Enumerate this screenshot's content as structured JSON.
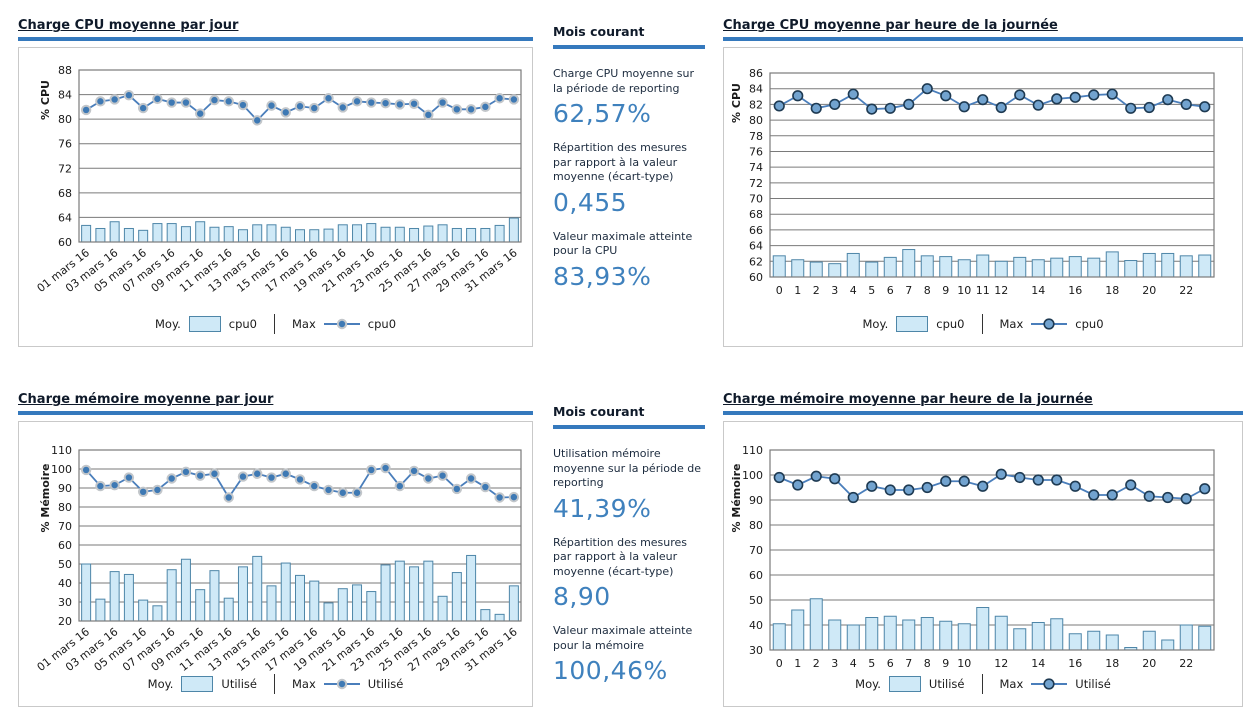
{
  "colors": {
    "accent_bar": "#3579bd",
    "big_number": "#3f81bd",
    "bar_fill": "#cfe9f7",
    "bar_stroke": "#4e86a8",
    "line": "#4a7ebb",
    "marker_fill_daily": "#3e79b4",
    "marker_stroke_daily": "#c2c6ca",
    "marker_fill_hourly": "#72a3cf",
    "marker_stroke_hourly": "#1e3a52",
    "grid": "#7a7a7a",
    "panel_border": "#c9c9c9",
    "title_text": "#0f1a2a"
  },
  "panels": {
    "cpu_daily": {
      "title": "Charge CPU  moyenne par jour"
    },
    "cpu_hourly": {
      "title": "Charge CPU moyenne par heure de la journée"
    },
    "mem_daily": {
      "title": "Charge mémoire moyenne par jour"
    },
    "mem_hourly": {
      "title": "Charge mémoire moyenne par heure de la journée"
    },
    "cpu_stats": {
      "title": "Mois courant",
      "items": [
        {
          "label": "Charge CPU moyenne sur la période de reporting",
          "value": "62,57%"
        },
        {
          "label": "Répartition des mesures par rapport à la valeur moyenne (écart-type)",
          "value": "0,455"
        },
        {
          "label": "Valeur maximale atteinte pour la CPU",
          "value": "83,93%"
        }
      ]
    },
    "mem_stats": {
      "title": "Mois courant",
      "items": [
        {
          "label": "Utilisation mémoire moyenne sur la période de reporting",
          "value": "41,39%"
        },
        {
          "label": "Répartition des mesures par rapport à la valeur moyenne (écart-type)",
          "value": "8,90"
        },
        {
          "label": "Valeur maximale atteinte pour la mémoire",
          "value": "100,46%"
        }
      ]
    }
  },
  "chart_data": [
    {
      "id": "cpu_daily",
      "type": "bar",
      "subtype": "combo-bar-line",
      "title": "Charge CPU  moyenne par jour",
      "xlabel": "",
      "ylabel": "% CPU",
      "ylim": [
        60,
        88
      ],
      "ystep": 4,
      "grid": true,
      "legend_position": "bottom",
      "marker_style": "daily",
      "rotate_x_labels": true,
      "categories": [
        "01 mars 16",
        "02 mars 16",
        "03 mars 16",
        "04 mars 16",
        "05 mars 16",
        "06 mars 16",
        "07 mars 16",
        "08 mars 16",
        "09 mars 16",
        "10 mars 16",
        "11 mars 16",
        "12 mars 16",
        "13 mars 16",
        "14 mars 16",
        "15 mars 16",
        "16 mars 16",
        "17 mars 16",
        "18 mars 16",
        "19 mars 16",
        "20 mars 16",
        "21 mars 16",
        "22 mars 16",
        "23 mars 16",
        "24 mars 16",
        "25 mars 16",
        "26 mars 16",
        "27 mars 16",
        "28 mars 16",
        "29 mars 16",
        "30 mars 16",
        "31 mars 16"
      ],
      "x_tick_labels": [
        "01 mars 16",
        "",
        "03 mars 16",
        "",
        "05 mars 16",
        "",
        "07 mars 16",
        "",
        "09 mars 16",
        "",
        "11 mars 16",
        "",
        "13 mars 16",
        "",
        "15 mars 16",
        "",
        "17 mars 16",
        "",
        "19 mars 16",
        "",
        "21 mars 16",
        "",
        "23 mars 16",
        "",
        "25 mars 16",
        "",
        "27 mars 16",
        "",
        "29 mars 16",
        "",
        "31 mars 16"
      ],
      "legend": {
        "moy_label": "Moy.",
        "max_label": "Max"
      },
      "series": [
        {
          "role": "Moy.",
          "name": "cpu0",
          "type": "bar",
          "values": [
            62.7,
            62.2,
            63.3,
            62.2,
            61.9,
            63.0,
            63.0,
            62.5,
            63.3,
            62.4,
            62.5,
            62.0,
            62.8,
            62.8,
            62.4,
            62.0,
            62.0,
            62.1,
            62.8,
            62.8,
            63.0,
            62.4,
            62.4,
            62.2,
            62.6,
            62.8,
            62.2,
            62.2,
            62.2,
            62.7,
            63.9
          ]
        },
        {
          "role": "Max",
          "name": "cpu0",
          "type": "line",
          "values": [
            81.5,
            82.9,
            83.2,
            83.9,
            81.8,
            83.3,
            82.7,
            82.7,
            80.9,
            83.1,
            82.9,
            82.3,
            79.8,
            82.2,
            81.1,
            82.1,
            81.8,
            83.4,
            81.9,
            82.9,
            82.7,
            82.6,
            82.4,
            82.5,
            80.7,
            82.7,
            81.6,
            81.6,
            82.0,
            83.4,
            83.2
          ]
        }
      ]
    },
    {
      "id": "cpu_hourly",
      "type": "bar",
      "subtype": "combo-bar-line",
      "title": "Charge CPU moyenne par heure de la journée",
      "xlabel": "",
      "ylabel": "% CPU",
      "ylim": [
        60,
        86
      ],
      "ystep": 2,
      "grid": true,
      "legend_position": "bottom",
      "marker_style": "hourly",
      "rotate_x_labels": false,
      "categories": [
        "0",
        "1",
        "2",
        "3",
        "4",
        "5",
        "6",
        "7",
        "8",
        "9",
        "10",
        "11",
        "12",
        "13",
        "14",
        "15",
        "16",
        "17",
        "18",
        "19",
        "20",
        "21",
        "22",
        "23"
      ],
      "x_tick_labels": [
        "0",
        "1",
        "2",
        "3",
        "4",
        "5",
        "6",
        "7",
        "8",
        "9",
        "10",
        "11",
        "12",
        "",
        "14",
        "",
        "16",
        "",
        "18",
        "",
        "20",
        "",
        "22",
        ""
      ],
      "legend": {
        "moy_label": "Moy.",
        "max_label": "Max"
      },
      "series": [
        {
          "role": "Moy.",
          "name": "cpu0",
          "type": "bar",
          "values": [
            62.7,
            62.2,
            61.9,
            61.7,
            63.0,
            61.9,
            62.5,
            63.5,
            62.7,
            62.6,
            62.2,
            62.8,
            62.0,
            62.5,
            62.2,
            62.4,
            62.6,
            62.4,
            63.2,
            62.1,
            63.0,
            63.0,
            62.7,
            62.8
          ]
        },
        {
          "role": "Max",
          "name": "cpu0",
          "type": "line",
          "values": [
            81.8,
            83.1,
            81.5,
            82.0,
            83.3,
            81.4,
            81.5,
            82.0,
            84.0,
            83.1,
            81.7,
            82.6,
            81.6,
            83.2,
            81.9,
            82.7,
            82.9,
            83.2,
            83.3,
            81.5,
            81.6,
            82.6,
            82.0,
            81.7
          ]
        }
      ]
    },
    {
      "id": "mem_daily",
      "type": "bar",
      "subtype": "combo-bar-line",
      "title": "Charge mémoire moyenne par jour",
      "xlabel": "",
      "ylabel": "% Mémoire",
      "ylim": [
        20,
        110
      ],
      "ystep": 10,
      "grid": true,
      "legend_position": "bottom",
      "marker_style": "daily",
      "rotate_x_labels": true,
      "categories": [
        "01 mars 16",
        "02 mars 16",
        "03 mars 16",
        "04 mars 16",
        "05 mars 16",
        "06 mars 16",
        "07 mars 16",
        "08 mars 16",
        "09 mars 16",
        "10 mars 16",
        "11 mars 16",
        "12 mars 16",
        "13 mars 16",
        "14 mars 16",
        "15 mars 16",
        "16 mars 16",
        "17 mars 16",
        "18 mars 16",
        "19 mars 16",
        "20 mars 16",
        "21 mars 16",
        "22 mars 16",
        "23 mars 16",
        "24 mars 16",
        "25 mars 16",
        "26 mars 16",
        "27 mars 16",
        "28 mars 16",
        "29 mars 16",
        "30 mars 16",
        "31 mars 16"
      ],
      "x_tick_labels": [
        "01 mars 16",
        "",
        "03 mars 16",
        "",
        "05 mars 16",
        "",
        "07 mars 16",
        "",
        "09 mars 16",
        "",
        "11 mars 16",
        "",
        "13 mars 16",
        "",
        "15 mars 16",
        "",
        "17 mars 16",
        "",
        "19 mars 16",
        "",
        "21 mars 16",
        "",
        "23 mars 16",
        "",
        "25 mars 16",
        "",
        "27 mars 16",
        "",
        "29 mars 16",
        "",
        "31 mars 16"
      ],
      "legend": {
        "moy_label": "Moy.",
        "max_label": "Max"
      },
      "series": [
        {
          "role": "Moy.",
          "name": "Utilisé",
          "type": "bar",
          "values": [
            50,
            31.5,
            46,
            44.5,
            31,
            28,
            47,
            52.5,
            36.5,
            46.5,
            32,
            48.5,
            54,
            38.5,
            50.5,
            44,
            41,
            29.5,
            37,
            39,
            35.5,
            49.5,
            51.5,
            48.5,
            51.5,
            33,
            45.5,
            54.5,
            26,
            23.5,
            38.5
          ]
        },
        {
          "role": "Max",
          "name": "Utilisé",
          "type": "line",
          "values": [
            99.5,
            91,
            91.5,
            95.5,
            88,
            89,
            95,
            98.5,
            96.5,
            97.5,
            85,
            96,
            97.5,
            95.5,
            97.5,
            94.5,
            91,
            89,
            87.5,
            87.5,
            99.5,
            100.5,
            91,
            99,
            95,
            96.5,
            89.5,
            95,
            90.5,
            85,
            85.2
          ]
        }
      ]
    },
    {
      "id": "mem_hourly",
      "type": "bar",
      "subtype": "combo-bar-line",
      "title": "Charge mémoire moyenne par heure de la journée",
      "xlabel": "",
      "ylabel": "% Mémoire",
      "ylim": [
        30,
        110
      ],
      "ystep": 10,
      "grid": true,
      "legend_position": "bottom",
      "marker_style": "hourly",
      "rotate_x_labels": false,
      "categories": [
        "0",
        "1",
        "2",
        "3",
        "4",
        "5",
        "6",
        "7",
        "8",
        "9",
        "10",
        "11",
        "12",
        "13",
        "14",
        "15",
        "16",
        "17",
        "18",
        "19",
        "20",
        "21",
        "22",
        "23"
      ],
      "x_tick_labels": [
        "0",
        "1",
        "2",
        "3",
        "4",
        "5",
        "6",
        "7",
        "8",
        "9",
        "10",
        "",
        "12",
        "",
        "14",
        "",
        "16",
        "",
        "18",
        "",
        "20",
        "",
        "22",
        ""
      ],
      "legend": {
        "moy_label": "Moy.",
        "max_label": "Max"
      },
      "series": [
        {
          "role": "Moy.",
          "name": "Utilisé",
          "type": "bar",
          "values": [
            40.5,
            46,
            50.5,
            42,
            40,
            43,
            43.5,
            42,
            43,
            41.5,
            40.5,
            47,
            43.5,
            38.5,
            41,
            42.5,
            36.5,
            37.5,
            36,
            31,
            37.5,
            34,
            40,
            39.5
          ]
        },
        {
          "role": "Max",
          "name": "Utilisé",
          "type": "line",
          "values": [
            99,
            96,
            99.5,
            98.5,
            91,
            95.5,
            94,
            94,
            95,
            97.5,
            97.5,
            95.5,
            100.3,
            99,
            98,
            98,
            95.5,
            92,
            92,
            96,
            91.5,
            91,
            90.5,
            94.5
          ]
        }
      ]
    }
  ]
}
